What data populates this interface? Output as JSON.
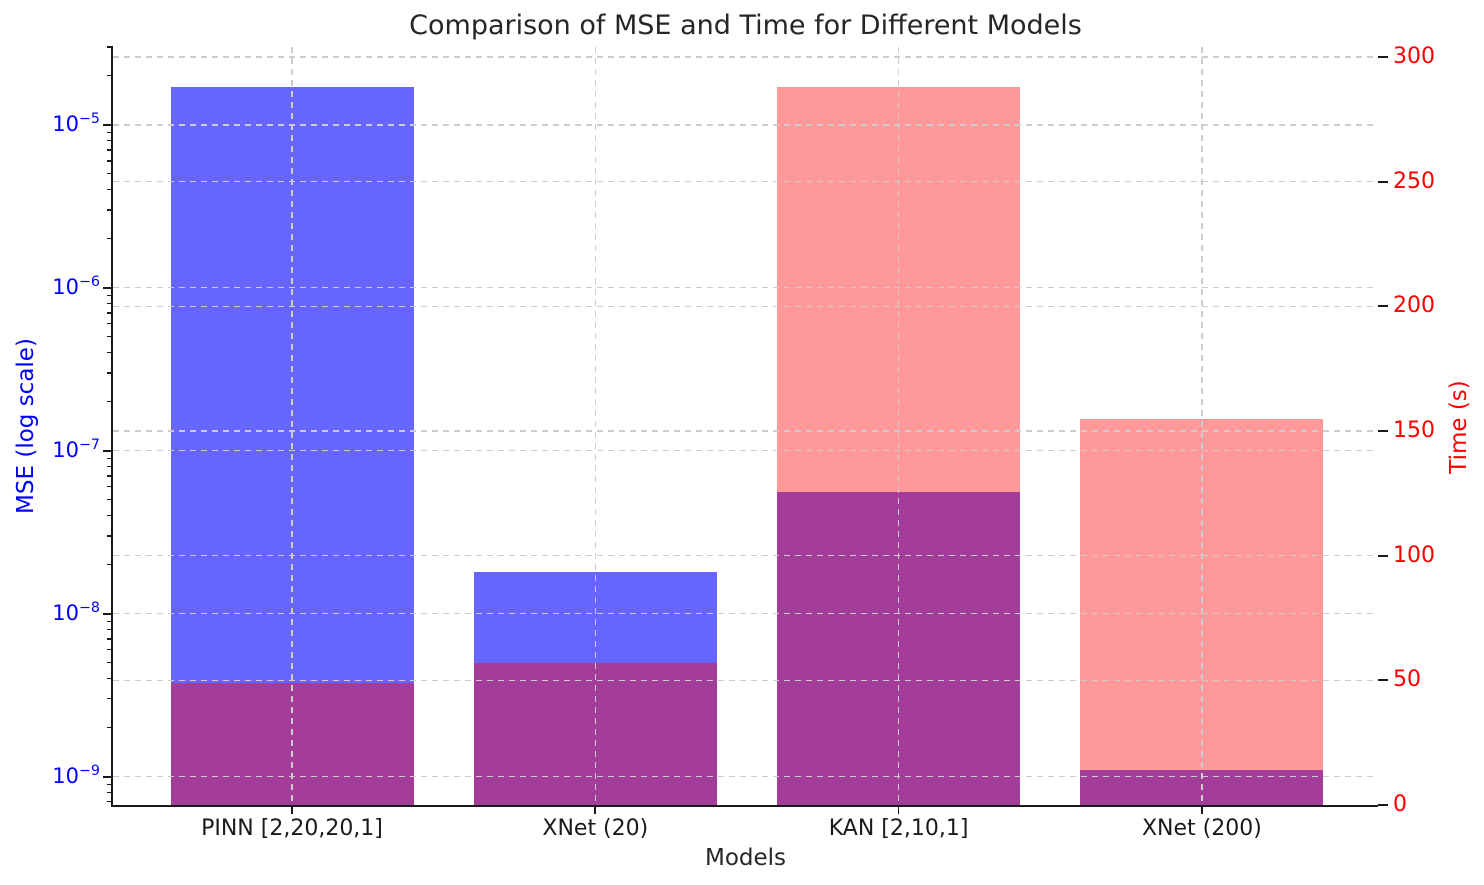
{
  "chart_data": {
    "type": "bar",
    "title": "Comparison of MSE and Time for Different Models",
    "xlabel": "Models",
    "categories": [
      "PINN [2,20,20,1]",
      "XNet (20)",
      "KAN [2,10,1]",
      "XNet (200)"
    ],
    "series": [
      {
        "name": "MSE",
        "axis": "left",
        "color": "rgba(0,0,255,0.6)",
        "flat_color": "#6666ff",
        "values": [
          1.7e-05,
          1.8e-08,
          5.6e-08,
          1.1e-09
        ]
      },
      {
        "name": "Time",
        "axis": "right",
        "color": "rgba(255,0,0,0.4)",
        "flat_color": "#ff9999",
        "values": [
          49,
          57,
          288,
          155
        ]
      }
    ],
    "overlap_color": "#a33d99",
    "left_axis": {
      "label": "MSE (log scale)",
      "scale": "log",
      "color": "#0000ff",
      "ylim": [
        6.7e-10,
        3e-05
      ],
      "ticks": [
        {
          "base": "10",
          "exp": "−5",
          "value": 1e-05
        },
        {
          "base": "10",
          "exp": "−6",
          "value": 1e-06
        },
        {
          "base": "10",
          "exp": "−7",
          "value": 1e-07
        },
        {
          "base": "10",
          "exp": "−8",
          "value": 1e-08
        },
        {
          "base": "10",
          "exp": "−9",
          "value": 1e-09
        }
      ]
    },
    "right_axis": {
      "label": "Time (s)",
      "scale": "linear",
      "color": "#ff0000",
      "ylim": [
        0,
        304
      ],
      "ticks": [
        {
          "label": "300",
          "value": 300
        },
        {
          "label": "250",
          "value": 250
        },
        {
          "label": "200",
          "value": 200
        },
        {
          "label": "150",
          "value": 150
        },
        {
          "label": "100",
          "value": 100
        },
        {
          "label": "50",
          "value": 50
        },
        {
          "label": "0",
          "value": 0
        }
      ]
    },
    "grid": {
      "color": "#cccccc",
      "style": "dashed",
      "over_bars": true
    },
    "spine_color": "#1a1a1a",
    "bar_width_frac": 0.8,
    "legend": null
  }
}
